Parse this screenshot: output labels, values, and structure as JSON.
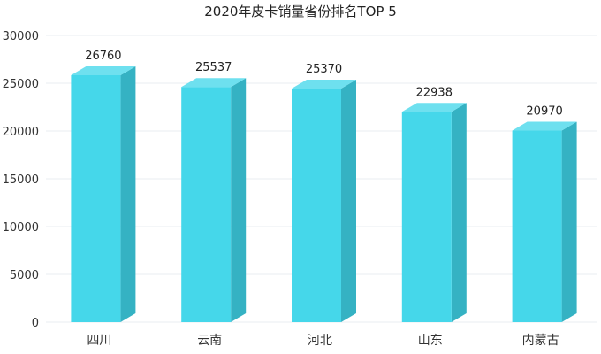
{
  "chart_data": {
    "type": "bar",
    "title": "2020年皮卡销量省份排名TOP 5",
    "xlabel": "",
    "ylabel": "",
    "categories": [
      "四川",
      "云南",
      "河北",
      "山东",
      "内蒙古"
    ],
    "values": [
      26760,
      25537,
      25370,
      22938,
      20970
    ],
    "ylim": [
      0,
      30000
    ],
    "yticks": [
      0,
      5000,
      10000,
      15000,
      20000,
      25000,
      30000
    ],
    "grid": true,
    "legend": "none",
    "colors": {
      "front": "#45d7ea",
      "top": "#6ee0ef",
      "side": "#35b2c3",
      "grid": "#e9ecf2"
    }
  }
}
